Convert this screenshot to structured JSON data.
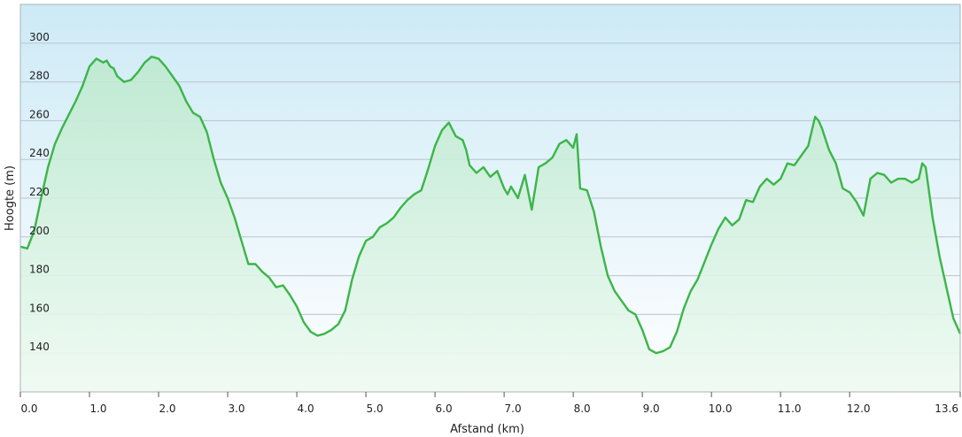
{
  "chart_data": {
    "type": "area",
    "xlabel": "Afstand  (km)",
    "ylabel": "Hoogte (m)",
    "xlim": [
      0,
      13.6
    ],
    "ylim": [
      120,
      320
    ],
    "grid": true,
    "x_ticks": [
      0,
      1,
      2,
      3,
      4,
      5,
      6,
      7,
      8,
      9,
      10,
      11,
      12,
      13.6
    ],
    "x_tick_labels": [
      "0.0",
      "1.0",
      "2.0",
      "3.0",
      "4.0",
      "5.0",
      "6.0",
      "7.0",
      "8.0",
      "9.0",
      "10.0",
      "11.0",
      "12.0",
      "13.6"
    ],
    "y_ticks": [
      140,
      160,
      180,
      200,
      220,
      240,
      260,
      280,
      300
    ],
    "y_tick_labels": [
      "140",
      "160",
      "180",
      "200",
      "220",
      "240",
      "260",
      "280",
      "300"
    ],
    "colors": {
      "line": "#3cb549",
      "fill_top": "#bde9cf",
      "fill_bottom": "#eefaf2",
      "bg_top": "#cdeaf6",
      "bg_bottom": "#ffffff",
      "grid": "#b9c6cc",
      "frame": "#a8b4b8"
    },
    "series": [
      {
        "x": [
          0,
          0.1,
          0.2,
          0.3,
          0.4,
          0.5,
          0.6,
          0.7,
          0.8,
          0.9,
          1.0,
          1.1,
          1.2,
          1.25,
          1.3,
          1.35,
          1.4,
          1.5,
          1.6,
          1.7,
          1.8,
          1.9,
          2.0,
          2.1,
          2.2,
          2.3,
          2.4,
          2.5,
          2.6,
          2.7,
          2.8,
          2.9,
          3.0,
          3.1,
          3.2,
          3.3,
          3.4,
          3.5,
          3.6,
          3.7,
          3.8,
          3.9,
          4.0,
          4.1,
          4.2,
          4.3,
          4.4,
          4.5,
          4.6,
          4.7,
          4.8,
          4.9,
          5.0,
          5.1,
          5.2,
          5.3,
          5.4,
          5.5,
          5.6,
          5.7,
          5.8,
          5.9,
          6.0,
          6.1,
          6.2,
          6.3,
          6.4,
          6.45,
          6.5,
          6.6,
          6.7,
          6.8,
          6.9,
          7.0,
          7.05,
          7.1,
          7.2,
          7.3,
          7.4,
          7.5,
          7.6,
          7.7,
          7.8,
          7.9,
          8.0,
          8.05,
          8.1,
          8.2,
          8.3,
          8.4,
          8.5,
          8.6,
          8.7,
          8.8,
          8.9,
          9.0,
          9.1,
          9.2,
          9.3,
          9.4,
          9.5,
          9.6,
          9.7,
          9.8,
          9.9,
          10.0,
          10.1,
          10.2,
          10.3,
          10.4,
          10.5,
          10.6,
          10.7,
          10.8,
          10.9,
          11.0,
          11.1,
          11.2,
          11.3,
          11.4,
          11.5,
          11.55,
          11.6,
          11.7,
          11.8,
          11.9,
          12.0,
          12.1,
          12.2,
          12.3,
          12.4,
          12.5,
          12.6,
          12.7,
          12.8,
          12.9,
          13.0,
          13.05,
          13.1,
          13.2,
          13.3,
          13.4,
          13.5,
          13.6
        ],
        "y": [
          195,
          194,
          203,
          220,
          236,
          248,
          256,
          263,
          270,
          278,
          288,
          292,
          290,
          291,
          288,
          287,
          283,
          280,
          281,
          285,
          290,
          293,
          292,
          288,
          283,
          278,
          270,
          264,
          262,
          254,
          240,
          228,
          220,
          210,
          198,
          186,
          186,
          182,
          179,
          174,
          175,
          170,
          164,
          156,
          151,
          149,
          150,
          152,
          155,
          162,
          178,
          190,
          198,
          200,
          205,
          207,
          210,
          215,
          219,
          222,
          224,
          235,
          247,
          255,
          259,
          252,
          250,
          245,
          237,
          233,
          236,
          231,
          234,
          225,
          222,
          226,
          220,
          232,
          214,
          236,
          238,
          241,
          248,
          250,
          246,
          253,
          225,
          224,
          213,
          195,
          180,
          172,
          167,
          162,
          160,
          152,
          142,
          140,
          141,
          143,
          151,
          163,
          172,
          178,
          187,
          196,
          204,
          210,
          206,
          209,
          219,
          218,
          226,
          230,
          227,
          230,
          238,
          237,
          242,
          247,
          262,
          260,
          256,
          245,
          238,
          225,
          223,
          218,
          211,
          230,
          233,
          232,
          228,
          230,
          230,
          228,
          230,
          238,
          236,
          210,
          190,
          174,
          158,
          150
        ]
      }
    ]
  }
}
